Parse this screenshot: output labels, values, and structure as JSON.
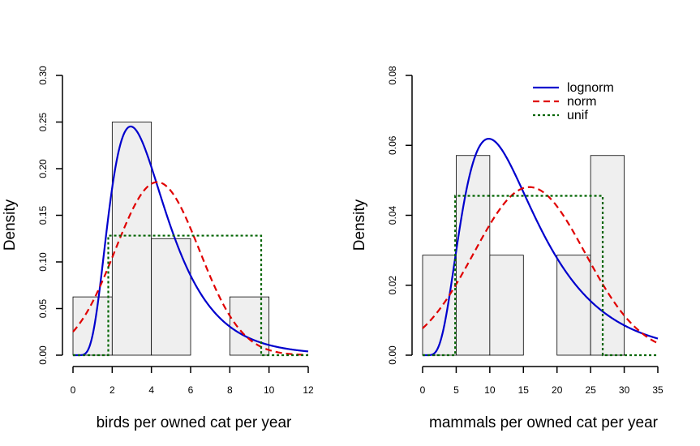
{
  "chart_data": [
    {
      "type": "histogram",
      "xlabel": "birds per owned cat per year",
      "ylabel": "Density",
      "xlim": [
        0,
        12
      ],
      "ylim": [
        0,
        0.3
      ],
      "xticks": [
        0,
        2,
        4,
        6,
        8,
        10,
        12
      ],
      "yticks": [
        0.0,
        0.05,
        0.1,
        0.15,
        0.2,
        0.25,
        0.3
      ],
      "ytick_labels": [
        "0.00",
        "0.05",
        "0.10",
        "0.15",
        "0.20",
        "0.25",
        "0.30"
      ],
      "bins": [
        {
          "x0": 0,
          "x1": 2,
          "density": 0.0625
        },
        {
          "x0": 2,
          "x1": 4,
          "density": 0.25
        },
        {
          "x0": 4,
          "x1": 6,
          "density": 0.125
        },
        {
          "x0": 6,
          "x1": 8,
          "density": 0.0
        },
        {
          "x0": 8,
          "x1": 10,
          "density": 0.0625
        }
      ],
      "fits": [
        {
          "name": "lognorm",
          "meanlog": 1.32,
          "sdlog": 0.49
        },
        {
          "name": "norm",
          "mean": 4.3,
          "sd": 2.15
        },
        {
          "name": "unif",
          "min": 1.8,
          "max": 9.6
        }
      ]
    },
    {
      "type": "histogram",
      "xlabel": "mammals per owned cat per year",
      "ylabel": "Density",
      "xlim": [
        0,
        35
      ],
      "ylim": [
        0,
        0.08
      ],
      "xticks": [
        0,
        5,
        10,
        15,
        20,
        25,
        30,
        35
      ],
      "yticks": [
        0.0,
        0.02,
        0.04,
        0.06,
        0.08
      ],
      "ytick_labels": [
        "0.00",
        "0.02",
        "0.04",
        "0.06",
        "0.08"
      ],
      "bins": [
        {
          "x0": 0,
          "x1": 5,
          "density": 0.0286
        },
        {
          "x0": 5,
          "x1": 10,
          "density": 0.0571
        },
        {
          "x0": 10,
          "x1": 15,
          "density": 0.0286
        },
        {
          "x0": 15,
          "x1": 20,
          "density": 0.0
        },
        {
          "x0": 20,
          "x1": 25,
          "density": 0.0286
        },
        {
          "x0": 25,
          "x1": 30,
          "density": 0.0571
        }
      ],
      "fits": [
        {
          "name": "lognorm",
          "meanlog": 2.6,
          "sdlog": 0.56
        },
        {
          "name": "norm",
          "mean": 15.9,
          "sd": 8.3
        },
        {
          "name": "unif",
          "min": 4.85,
          "max": 26.8
        }
      ],
      "legend": {
        "position": "top-right",
        "entries": [
          {
            "label": "lognorm",
            "color": "#0000CD",
            "dash": "solid"
          },
          {
            "label": "norm",
            "color": "#E00000",
            "dash": "dashed"
          },
          {
            "label": "unif",
            "color": "#006400",
            "dash": "dotted"
          }
        ]
      }
    }
  ],
  "colors": {
    "lognorm": "#0000CD",
    "norm": "#E00000",
    "unif": "#006400",
    "bar_fill": "#EFEFEF",
    "bar_stroke": "#000000"
  }
}
